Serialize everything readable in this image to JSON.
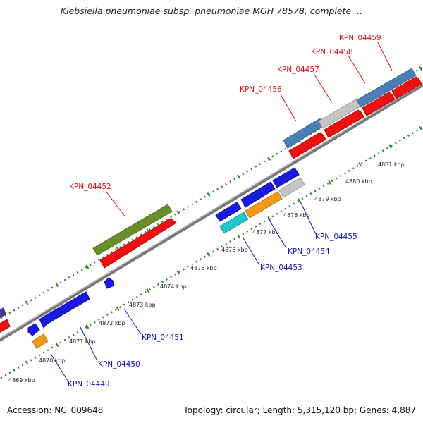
{
  "header": {
    "title": "Klebsiella pneumoniae subsp. pneumoniae MGH 78578, complete ..."
  },
  "footer": {
    "accession": "Accession: NC_009648",
    "summary": "Topology: circular; Length: 5,315,120 bp; Genes: 4,887"
  },
  "ruler": {
    "unit": "kbp",
    "ticks": [
      "4869 kbp",
      "4870 kbp",
      "4871 kbp",
      "4872 kbp",
      "4873 kbp",
      "4874 kbp",
      "4875 kbp",
      "4876 kbp",
      "4877 kbp",
      "4878 kbp",
      "4879 kbp",
      "4880 kbp",
      "4881 kbp"
    ]
  },
  "genes": {
    "forward": [
      "KPN_04452",
      "KPN_04456",
      "KPN_04457",
      "KPN_04458",
      "KPN_04459"
    ],
    "reverse": [
      "KPN_04449",
      "KPN_04450",
      "KPN_04451",
      "KPN_04453",
      "KPN_04454",
      "KPN_04455"
    ]
  },
  "colors": {
    "forward_label": "#e01010",
    "reverse_label": "#1010c0",
    "backbone": "#888888",
    "ruler_dots": "#2a8a2a",
    "red": "#ee1111",
    "blue": "#1a1ae0",
    "steel": "#4a7fb5",
    "olive": "#6a8f2a",
    "silver": "#c4c4c4",
    "orange": "#f39a1a",
    "cyan": "#22c8c8",
    "purple": "#4a3a8a"
  }
}
